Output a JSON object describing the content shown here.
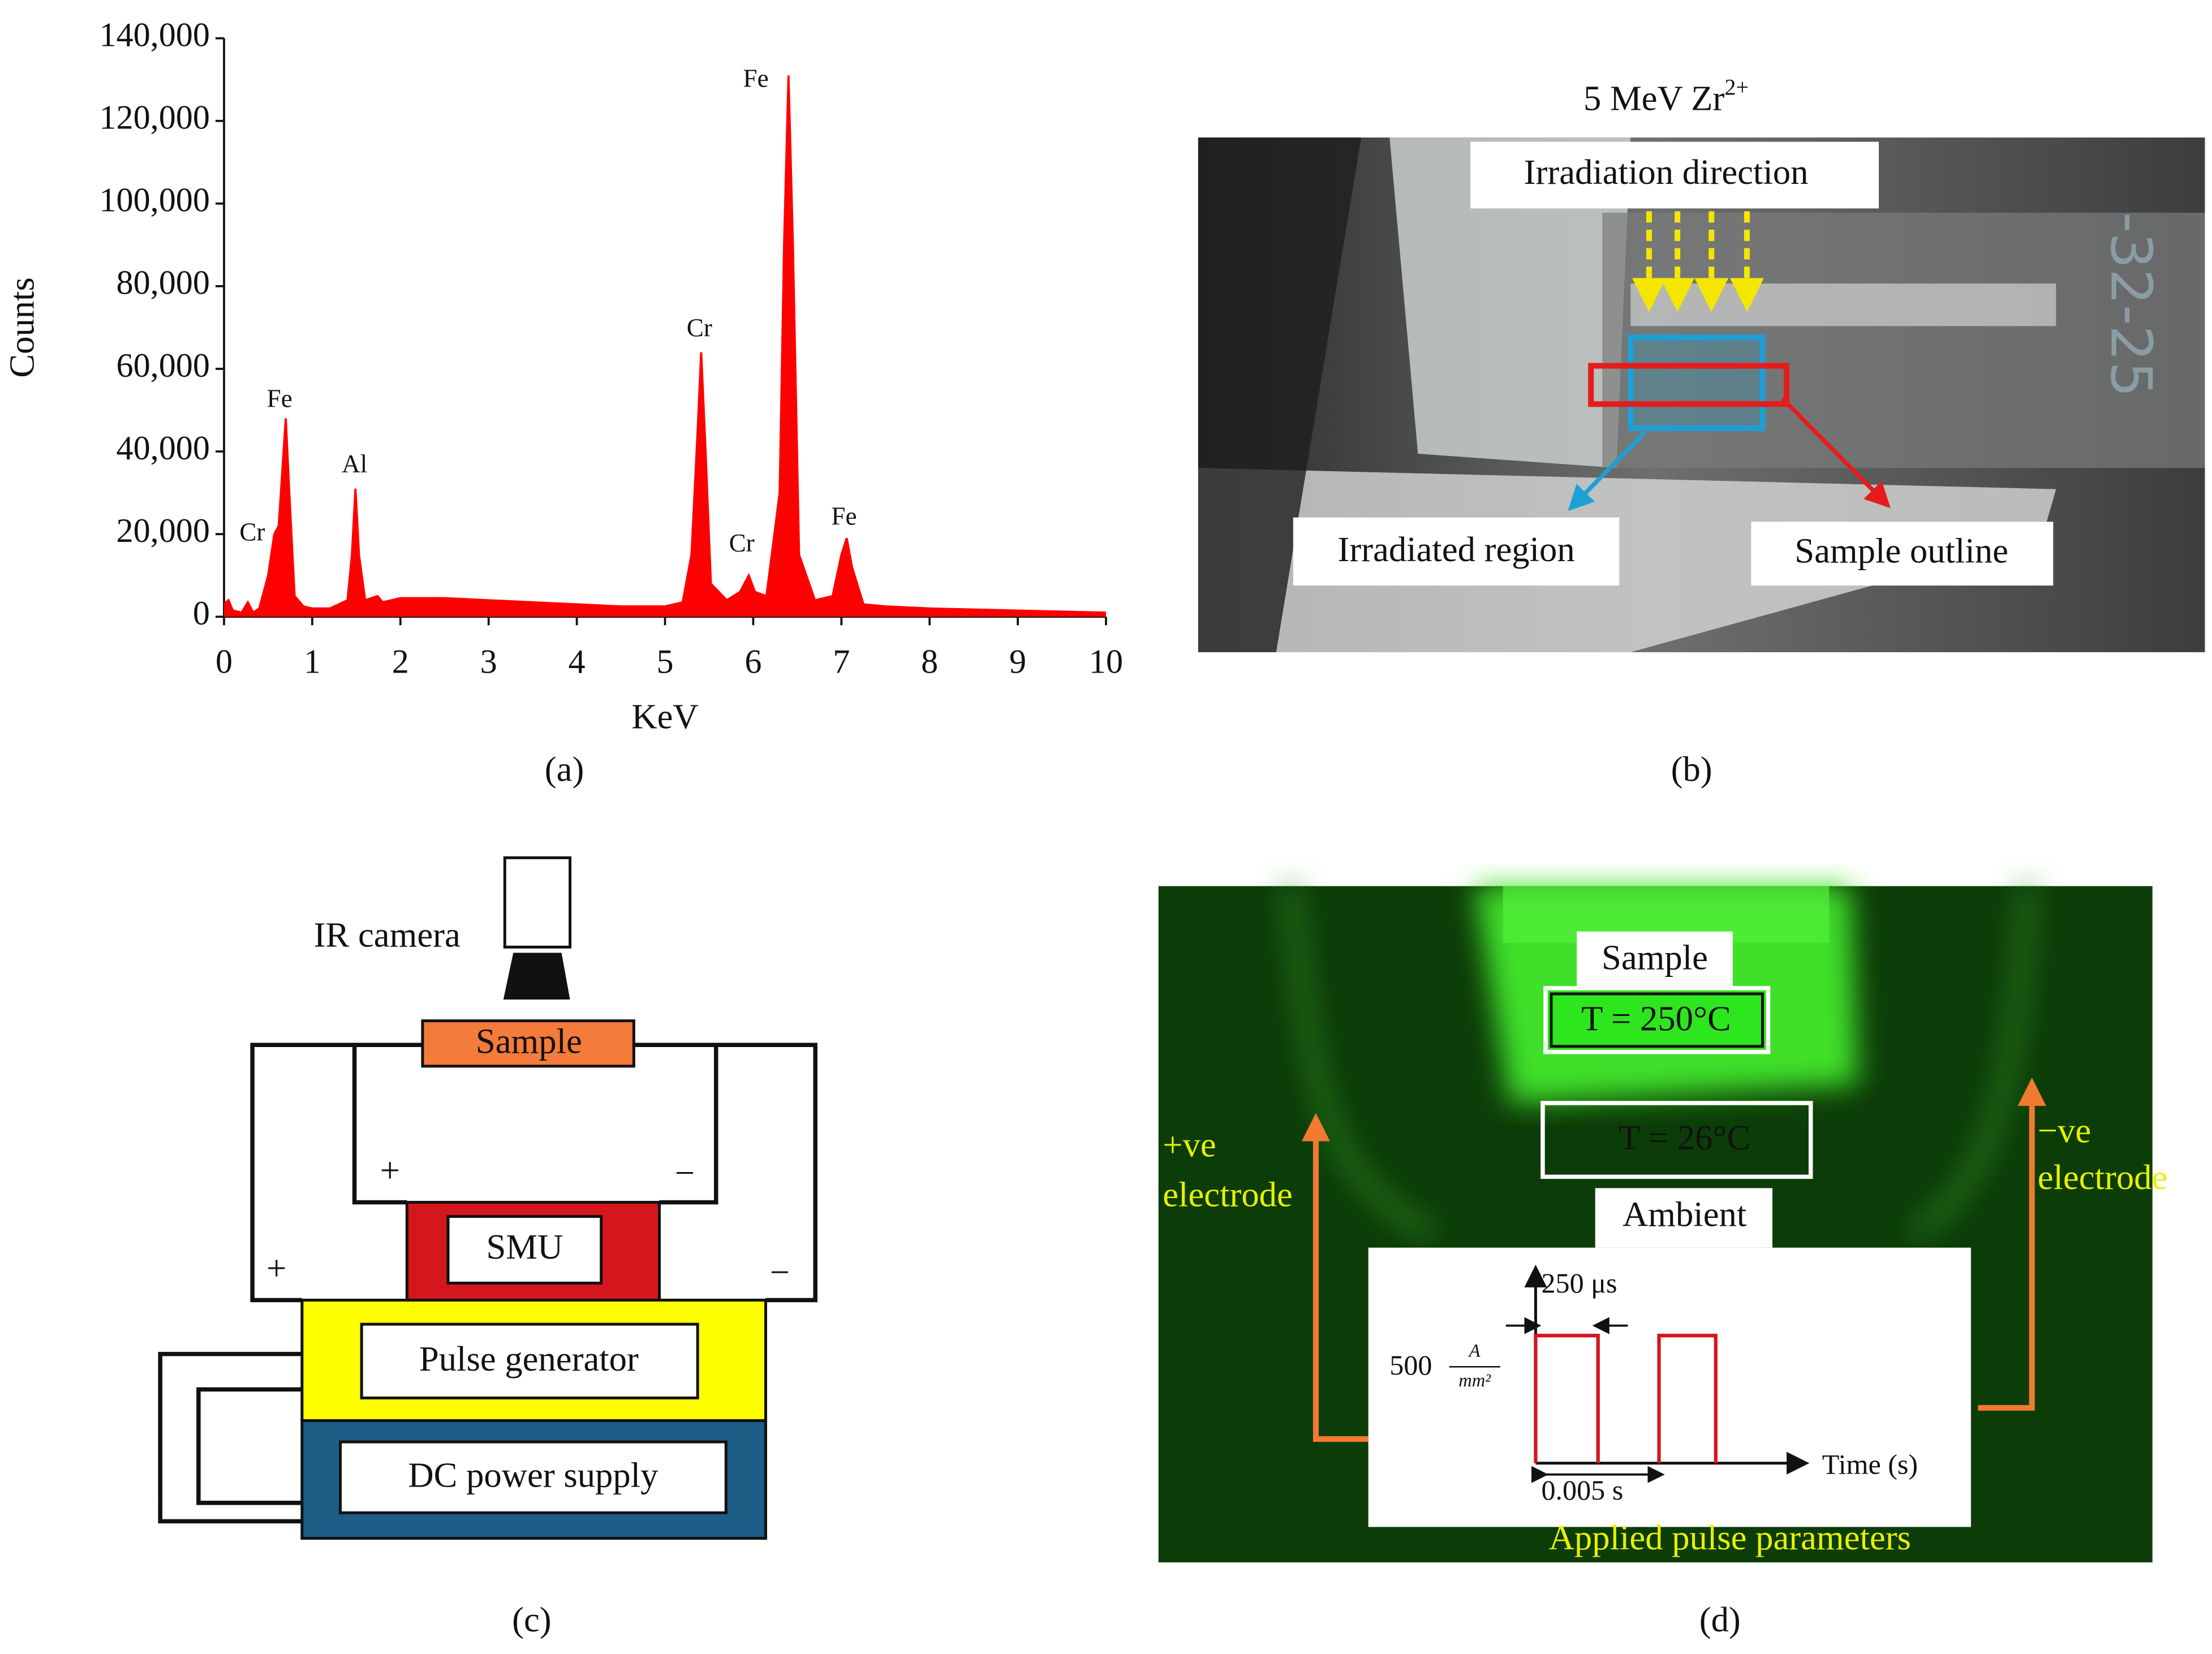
{
  "chart_data": {
    "type": "area",
    "color": "#ff0000",
    "x": [
      0,
      0.05,
      0.1,
      0.2,
      0.27,
      0.33,
      0.4,
      0.5,
      0.57,
      0.62,
      0.66,
      0.7,
      0.74,
      0.8,
      0.9,
      1.0,
      1.2,
      1.4,
      1.45,
      1.49,
      1.53,
      1.6,
      1.74,
      1.8,
      2.0,
      2.5,
      3.0,
      3.5,
      4.0,
      4.5,
      5.0,
      5.2,
      5.3,
      5.37,
      5.41,
      5.46,
      5.52,
      5.7,
      5.85,
      5.95,
      6.02,
      6.15,
      6.3,
      6.35,
      6.4,
      6.45,
      6.52,
      6.7,
      6.9,
      7.0,
      7.06,
      7.12,
      7.25,
      7.5,
      8.0,
      9.0,
      10.0
    ],
    "values": [
      3000,
      4000,
      1500,
      1000,
      3500,
      1000,
      2000,
      10000,
      20000,
      22000,
      35000,
      48000,
      30000,
      5000,
      2500,
      2000,
      2000,
      4000,
      15000,
      31000,
      15000,
      4000,
      5000,
      3500,
      4500,
      4500,
      4000,
      3500,
      3000,
      2500,
      2500,
      3500,
      15000,
      45000,
      64000,
      40000,
      8000,
      4000,
      6000,
      10000,
      6000,
      5000,
      30000,
      90000,
      131000,
      90000,
      15000,
      4000,
      5000,
      15000,
      19000,
      12000,
      3000,
      2500,
      2000,
      1500,
      1000
    ],
    "xlabel": "KeV",
    "ylabel": "Counts",
    "xlim": [
      0,
      10
    ],
    "xticks": [
      0,
      1,
      2,
      3,
      4,
      5,
      6,
      7,
      8,
      9,
      10
    ],
    "ylim": [
      0,
      140000
    ],
    "yticks": [
      0,
      {
        "value": 20000,
        "label": "20,000"
      },
      {
        "value": 40000,
        "label": "40,000"
      },
      {
        "value": 60000,
        "label": "60,000"
      },
      {
        "value": 80000,
        "label": "80,000"
      },
      {
        "value": 100000,
        "label": "100,000"
      },
      {
        "value": 120000,
        "label": "120,000"
      },
      {
        "value": 140000,
        "label": "140,000"
      }
    ],
    "annotations": [
      {
        "text": "Cr",
        "x": 0.32,
        "y": 19900
      },
      {
        "text": "Fe",
        "x": 0.63,
        "y": 52200
      },
      {
        "text": "Al",
        "x": 1.48,
        "y": 36400
      },
      {
        "text": "Cr",
        "x": 5.39,
        "y": 69300
      },
      {
        "text": "Cr",
        "x": 5.87,
        "y": 17200
      },
      {
        "text": "Fe",
        "x": 6.03,
        "y": 129700
      },
      {
        "text": "Fe",
        "x": 7.03,
        "y": 23700
      }
    ]
  },
  "captions": [
    "(a)",
    "(b)",
    "(c)",
    "(d)"
  ],
  "panel_b": {
    "beam": "5 MeV Zr",
    "beam_charge": "2+",
    "direction": "Irradiation direction",
    "irradiated": "Irradiated region",
    "outline": "Sample outline",
    "photo_text": "-32-25"
  },
  "panel_c": {
    "camera": "IR camera",
    "sample": "Sample",
    "smu": "SMU",
    "pulse": "Pulse generator",
    "dc": "DC power supply",
    "signs": [
      "+",
      "−",
      "+",
      "−"
    ]
  },
  "panel_d": {
    "sample": "Sample",
    "t_sample": "T = 250°C",
    "t_ambient": "T = 26°C",
    "ambient": "Ambient",
    "positive": [
      "+ve",
      "electrode"
    ],
    "negative": [
      "−ve",
      "electrode"
    ],
    "pulse_width": "250 μs",
    "amplitude": "500",
    "amplitude_unit_top": "A",
    "amplitude_unit_bottom": "mm²",
    "time_axis": "Time (s)",
    "period": "0.005 s",
    "inset_title": "Applied pulse parameters"
  }
}
